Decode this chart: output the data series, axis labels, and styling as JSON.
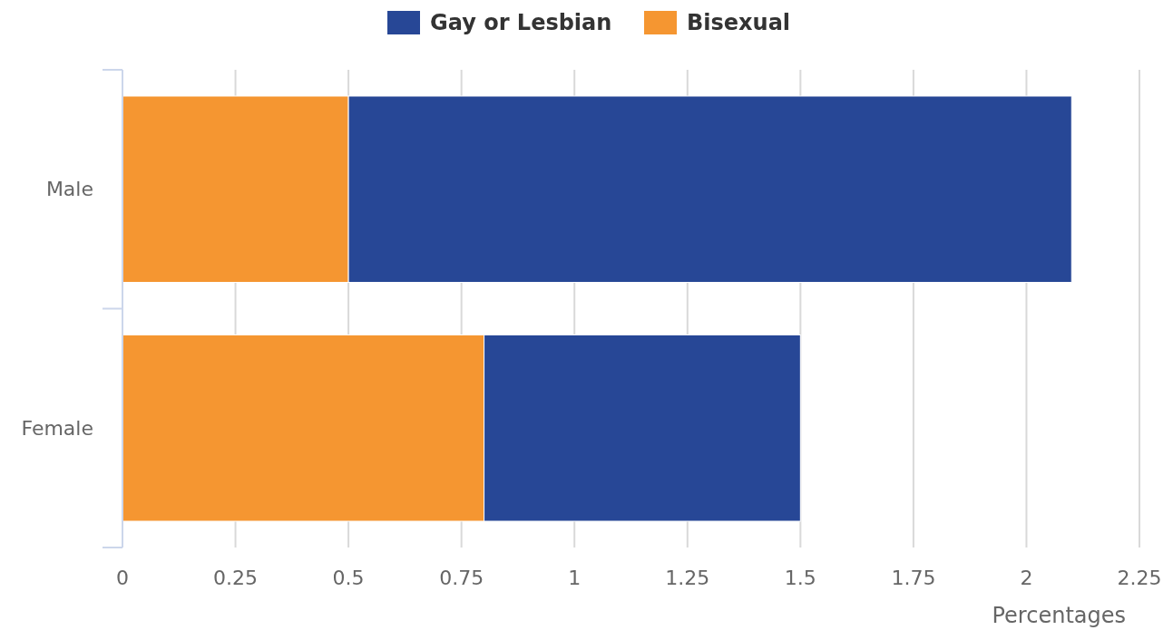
{
  "chart_data": {
    "type": "bar",
    "orientation": "horizontal",
    "stacked": true,
    "categories": [
      "Male",
      "Female"
    ],
    "series": [
      {
        "name": "Bisexual",
        "color": "#f59631",
        "values": [
          0.5,
          0.8
        ]
      },
      {
        "name": "Gay or Lesbian",
        "color": "#274796",
        "values": [
          1.6,
          0.7
        ]
      }
    ],
    "xlim": [
      0,
      2.25
    ],
    "xticks": [
      0,
      0.25,
      0.5,
      0.75,
      1,
      1.25,
      1.5,
      1.75,
      2,
      2.25
    ],
    "xlabel": "Percentages",
    "grid": "x",
    "legend": "top"
  }
}
